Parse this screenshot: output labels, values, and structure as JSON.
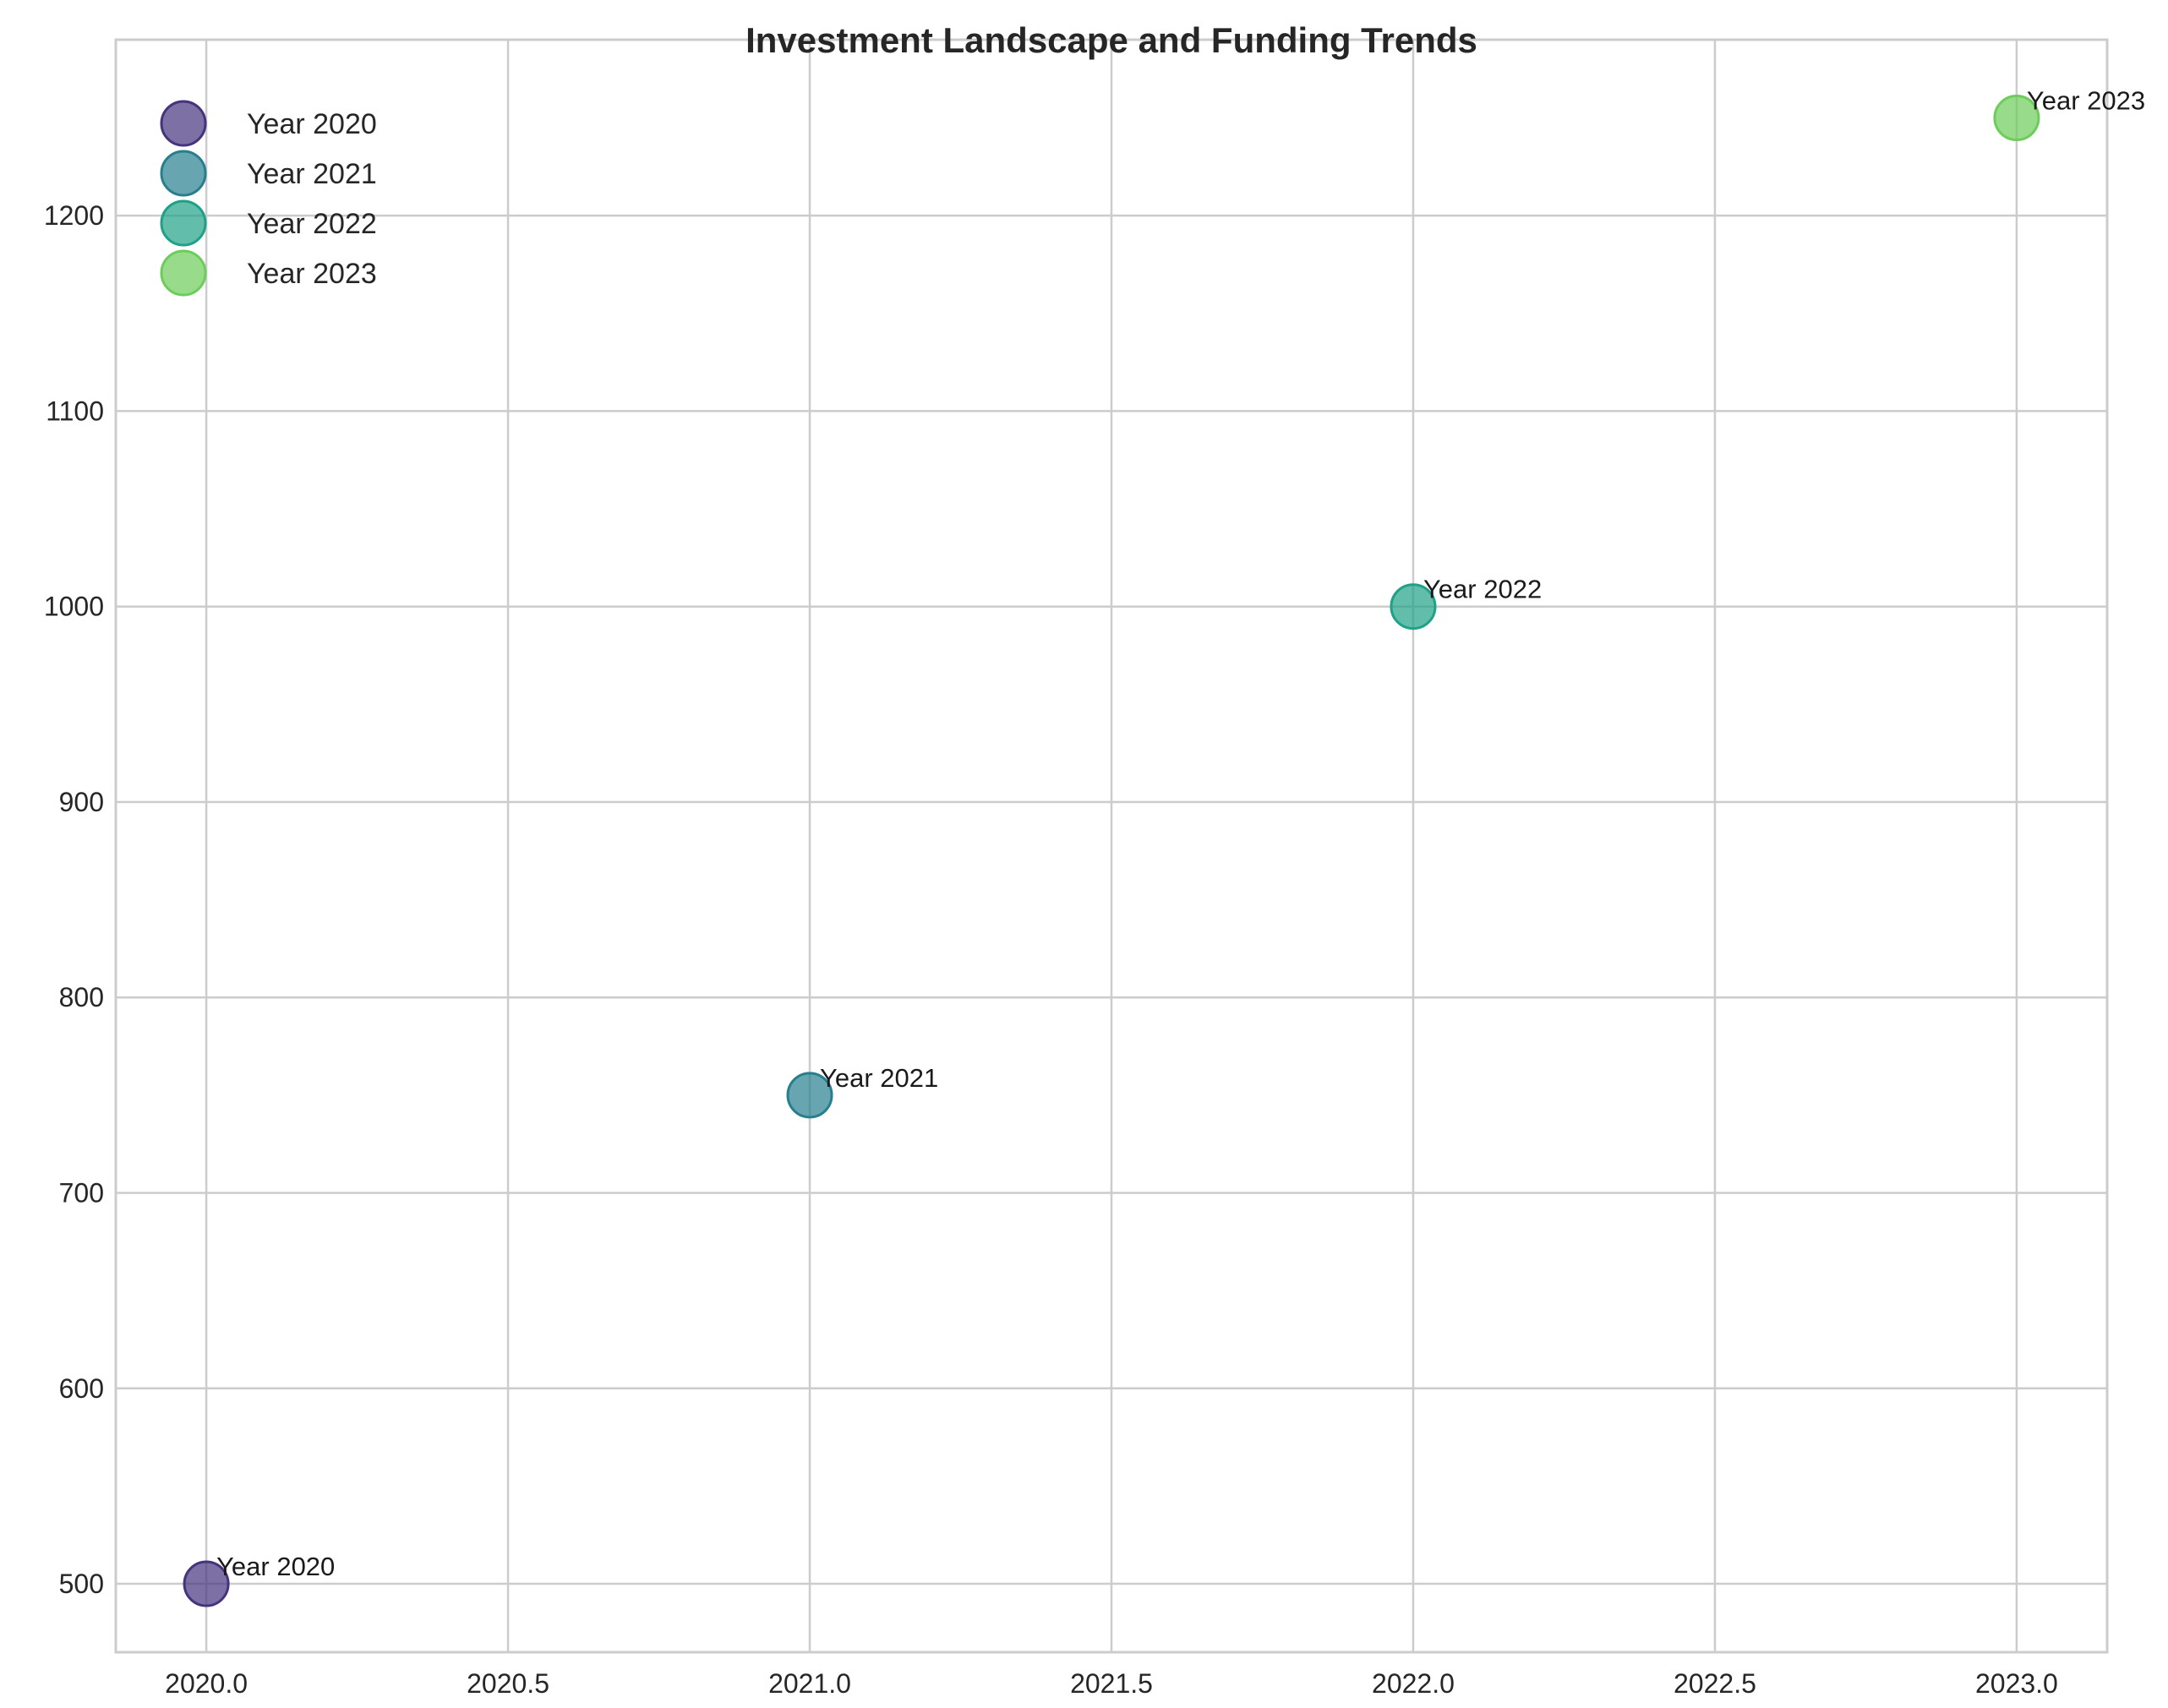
{
  "chart_data": {
    "type": "scatter",
    "title": "Investment Landscape and Funding Trends",
    "xlabel": "",
    "ylabel": "",
    "xlim": [
      2019.85,
      2023.15
    ],
    "ylim": [
      465,
      1290
    ],
    "x_ticks": [
      "2020.0",
      "2020.5",
      "2021.0",
      "2021.5",
      "2022.0",
      "2022.5",
      "2023.0"
    ],
    "x_tick_values": [
      2020.0,
      2020.5,
      2021.0,
      2021.5,
      2022.0,
      2022.5,
      2023.0
    ],
    "y_ticks": [
      "500",
      "600",
      "700",
      "800",
      "900",
      "1000",
      "1100",
      "1200"
    ],
    "y_tick_values": [
      500,
      600,
      700,
      800,
      900,
      1000,
      1100,
      1200
    ],
    "grid": true,
    "legend_position": "top-left",
    "series": [
      {
        "name": "Year 2020",
        "color": "#46337e",
        "points": [
          {
            "x": 2020,
            "y": 500,
            "label": "Year 2020"
          }
        ]
      },
      {
        "name": "Year 2021",
        "color": "#277f8e",
        "points": [
          {
            "x": 2021,
            "y": 750,
            "label": "Year 2021"
          }
        ]
      },
      {
        "name": "Year 2022",
        "color": "#1fa187",
        "points": [
          {
            "x": 2022,
            "y": 1000,
            "label": "Year 2022"
          }
        ]
      },
      {
        "name": "Year 2023",
        "color": "#6ccd5a",
        "points": [
          {
            "x": 2023,
            "y": 1250,
            "label": "Year 2023"
          }
        ]
      }
    ]
  }
}
